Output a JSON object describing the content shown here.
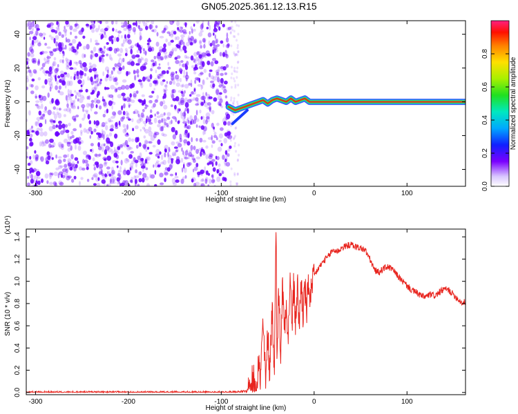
{
  "title": "GN05.2025.361.12.13.R15",
  "colors": {
    "noise": "#6a00ff",
    "snr_line": "#e8241e",
    "track_core": "#e8241e",
    "track_outer": "#10c8c0"
  },
  "chart_data": [
    {
      "type": "heatmap",
      "xlabel": "Height of straight line (km)",
      "ylabel": "Frequency (Hz)",
      "xlim": [
        -310,
        163
      ],
      "ylim": [
        -50,
        48
      ],
      "xticks": [
        -300,
        -200,
        -100,
        0,
        100
      ],
      "yticks": [
        -40,
        -20,
        0,
        20,
        40
      ],
      "noise_region_x": [
        -310,
        -90
      ],
      "frequency_track": [
        {
          "x": -92,
          "f": -3
        },
        {
          "x": -85,
          "f": -5
        },
        {
          "x": -80,
          "f": -4
        },
        {
          "x": -75,
          "f": -3
        },
        {
          "x": -70,
          "f": -2
        },
        {
          "x": -65,
          "f": -1
        },
        {
          "x": -60,
          "f": 0
        },
        {
          "x": -55,
          "f": 1
        },
        {
          "x": -50,
          "f": -1
        },
        {
          "x": -45,
          "f": 1
        },
        {
          "x": -40,
          "f": 2
        },
        {
          "x": -35,
          "f": 1
        },
        {
          "x": -30,
          "f": 0
        },
        {
          "x": -25,
          "f": 2
        },
        {
          "x": -20,
          "f": 0
        },
        {
          "x": -15,
          "f": 1
        },
        {
          "x": -10,
          "f": 2
        },
        {
          "x": -5,
          "f": 0
        },
        {
          "x": 0,
          "f": 0
        },
        {
          "x": 163,
          "f": 0
        }
      ],
      "colorbar": {
        "label": "Normalized spectral amplitude",
        "range": [
          0,
          1
        ],
        "ticks": [
          "0.0",
          "0.2",
          "0.4",
          "0.6",
          "0.8"
        ],
        "tick_values": [
          0,
          0.2,
          0.4,
          0.6,
          0.8
        ]
      }
    },
    {
      "type": "line",
      "xlabel": "Height of straight line (km)",
      "ylabel": "SNR (10 * v/v)",
      "y_multiplier": "(x10⁴)",
      "xlim": [
        -310,
        163
      ],
      "ylim": [
        -0.02,
        1.47
      ],
      "xticks": [
        -300,
        -200,
        -100,
        0,
        100
      ],
      "yticks": [
        "0.0",
        "0.2",
        "0.4",
        "0.6",
        "0.8",
        "1.0",
        "1.2",
        "1.4"
      ],
      "ytick_values": [
        0,
        0.2,
        0.4,
        0.6,
        0.8,
        1.0,
        1.2,
        1.4
      ],
      "series": [
        {
          "x": [
            -310,
            -100,
            -70,
            -68,
            -65,
            -62,
            -60,
            -58,
            -55,
            -52,
            -50,
            -48,
            -45,
            -43,
            -41,
            -40,
            -38,
            -36,
            -34,
            -32,
            -30,
            -28,
            -26,
            -24,
            -22,
            -20,
            -18,
            -16,
            -14,
            -12,
            -10,
            -8,
            -6,
            -4,
            -2,
            0,
            5,
            10,
            15,
            20,
            25,
            30,
            35,
            40,
            45,
            50,
            55,
            60,
            65,
            70,
            75,
            80,
            85,
            90,
            95,
            100,
            105,
            110,
            115,
            120,
            125,
            130,
            135,
            140,
            145,
            150,
            155,
            160,
            163
          ],
          "y": [
            0.0,
            0.0,
            0.01,
            0.06,
            0.12,
            0.08,
            0.3,
            0.1,
            0.62,
            0.05,
            0.55,
            0.2,
            0.78,
            0.15,
            1.47,
            0.4,
            0.9,
            0.35,
            0.98,
            0.55,
            0.88,
            0.45,
            1.05,
            0.6,
            0.95,
            0.62,
            0.98,
            0.58,
            1.02,
            0.7,
            0.95,
            0.72,
            1.0,
            0.85,
            0.92,
            1.05,
            1.12,
            1.18,
            1.22,
            1.28,
            1.27,
            1.3,
            1.32,
            1.33,
            1.31,
            1.3,
            1.28,
            1.2,
            1.1,
            1.08,
            1.12,
            1.13,
            1.1,
            1.05,
            1.0,
            0.96,
            0.92,
            0.9,
            0.87,
            0.86,
            0.88,
            0.87,
            0.9,
            0.93,
            0.92,
            0.88,
            0.84,
            0.8,
            0.82
          ]
        }
      ]
    }
  ]
}
